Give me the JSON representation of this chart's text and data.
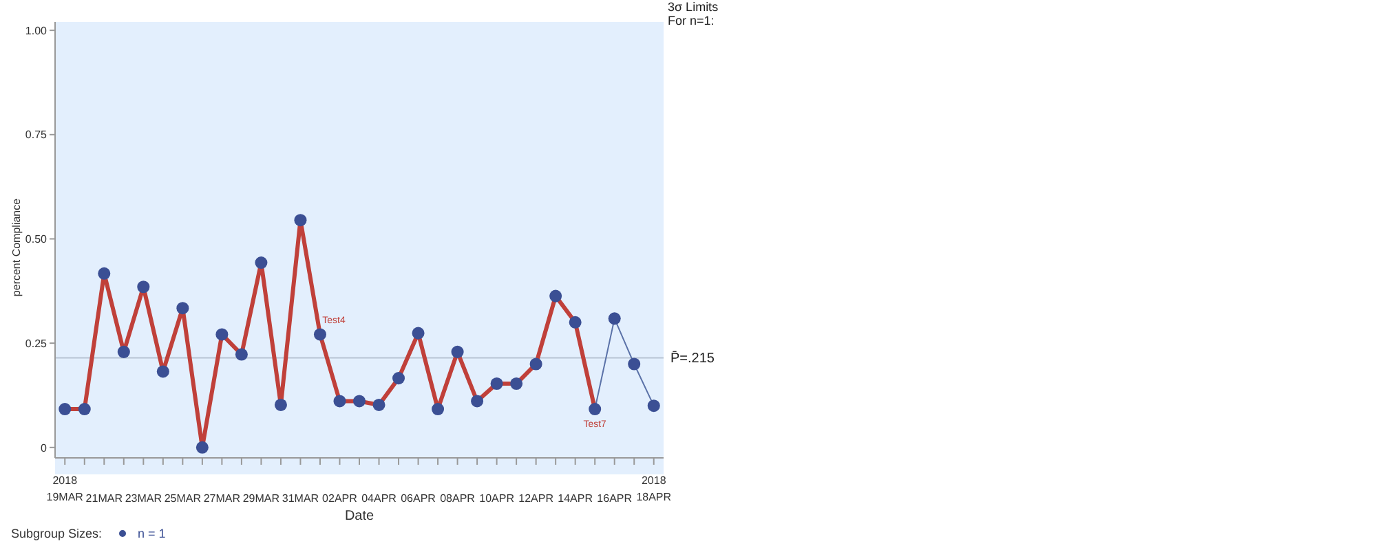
{
  "chart_data": {
    "type": "line",
    "xlabel": "Date",
    "ylabel": "percent Compliance",
    "legend_title": "Subgroup Sizes:",
    "legend": "bottom",
    "marker": "circle",
    "line_style": "solid",
    "grid": false,
    "x": [
      "2018-03-19",
      "2018-03-20",
      "2018-03-21",
      "2018-03-22",
      "2018-03-23",
      "2018-03-24",
      "2018-03-25",
      "2018-03-26",
      "2018-03-27",
      "2018-03-28",
      "2018-03-29",
      "2018-03-30",
      "2018-03-31",
      "2018-04-01",
      "2018-04-02",
      "2018-04-03",
      "2018-04-04",
      "2018-04-05",
      "2018-04-06",
      "2018-04-07",
      "2018-04-08",
      "2018-04-09",
      "2018-04-10",
      "2018-04-11",
      "2018-04-12",
      "2018-04-13",
      "2018-04-14",
      "2018-04-15",
      "2018-04-16",
      "2018-04-17",
      "2018-04-18"
    ],
    "series": [
      {
        "color": "#c0403a",
        "marker": "none",
        "values": [
          0.092,
          0.092,
          0.417,
          0.229,
          0.385,
          0.182,
          0.334,
          0,
          0.271,
          0.223,
          0.443,
          0.102,
          0.545,
          0.271,
          0.111,
          0.111,
          0.102,
          0.166,
          0.274,
          0.092,
          0.229,
          0.111,
          0.153,
          0.153,
          0.2,
          0.363,
          0.3,
          0.092,
          null,
          null,
          null
        ]
      },
      {
        "color": "#5b72a8",
        "marker": "none",
        "values": [
          null,
          null,
          null,
          null,
          null,
          null,
          null,
          null,
          null,
          null,
          null,
          null,
          null,
          null,
          null,
          null,
          null,
          null,
          null,
          null,
          null,
          null,
          null,
          null,
          null,
          null,
          null,
          0.092,
          0.309,
          0.2,
          0.1
        ]
      },
      {
        "type": "scatter",
        "name": "n = 1",
        "color": "#3b4f94",
        "values": [
          0.092,
          0.092,
          0.417,
          0.229,
          0.385,
          0.182,
          0.334,
          0,
          0.271,
          0.223,
          0.443,
          0.102,
          0.545,
          0.271,
          0.111,
          0.111,
          0.102,
          0.166,
          0.274,
          0.092,
          0.229,
          0.111,
          0.153,
          0.153,
          0.2,
          0.363,
          0.3,
          0.092,
          0.309,
          0.2,
          0.1
        ]
      }
    ],
    "xlim": [
      "2018-03-18T12:00",
      "2018-04-18T12:00"
    ],
    "xticks": [
      {
        "value": "2018-03-19",
        "label": "2018\n19MAR"
      },
      {
        "value": "2018-03-20",
        "label": null
      },
      {
        "value": "2018-03-21",
        "label": "21MAR"
      },
      {
        "value": "2018-03-22",
        "label": null
      },
      {
        "value": "2018-03-23",
        "label": "23MAR"
      },
      {
        "value": "2018-03-24",
        "label": null
      },
      {
        "value": "2018-03-25",
        "label": "25MAR"
      },
      {
        "value": "2018-03-26",
        "label": null
      },
      {
        "value": "2018-03-27",
        "label": "27MAR"
      },
      {
        "value": "2018-03-28",
        "label": null
      },
      {
        "value": "2018-03-29",
        "label": "29MAR"
      },
      {
        "value": "2018-03-30",
        "label": null
      },
      {
        "value": "2018-03-31",
        "label": "31MAR"
      },
      {
        "value": "2018-04-01",
        "label": null
      },
      {
        "value": "2018-04-02",
        "label": "02APR"
      },
      {
        "value": "2018-04-03",
        "label": null
      },
      {
        "value": "2018-04-04",
        "label": "04APR"
      },
      {
        "value": "2018-04-05",
        "label": null
      },
      {
        "value": "2018-04-06",
        "label": "06APR"
      },
      {
        "value": "2018-04-07",
        "label": null
      },
      {
        "value": "2018-04-08",
        "label": "08APR"
      },
      {
        "value": "2018-04-09",
        "label": null
      },
      {
        "value": "2018-04-10",
        "label": "10APR"
      },
      {
        "value": "2018-04-11",
        "label": null
      },
      {
        "value": "2018-04-12",
        "label": "12APR"
      },
      {
        "value": "2018-04-13",
        "label": null
      },
      {
        "value": "2018-04-14",
        "label": "14APR"
      },
      {
        "value": "2018-04-15",
        "label": null
      },
      {
        "value": "2018-04-16",
        "label": "16APR"
      },
      {
        "value": "2018-04-17",
        "label": null
      },
      {
        "value": "2018-04-18",
        "label": "2018\n18APR"
      }
    ],
    "ylim": [
      -0.025,
      1.02
    ],
    "yticks": [
      0,
      {
        "value": 0.25,
        "label": "0.25"
      },
      {
        "value": 0.5,
        "label": "0.50"
      },
      {
        "value": 0.75,
        "label": "0.75"
      },
      {
        "value": 1,
        "label": "1.00"
      }
    ],
    "ref_lines": [
      {
        "axis": "y",
        "value": 0.215,
        "label": "P̄=.215",
        "color": "#b8c4d4"
      }
    ],
    "annotations": [
      {
        "text": "Test4",
        "x": "2018-04-01",
        "y": 0.271
      },
      {
        "text": "Test7",
        "x": "2018-04-15",
        "y": 0.092
      },
      "3σ Limits",
      "For n=1:"
    ]
  }
}
